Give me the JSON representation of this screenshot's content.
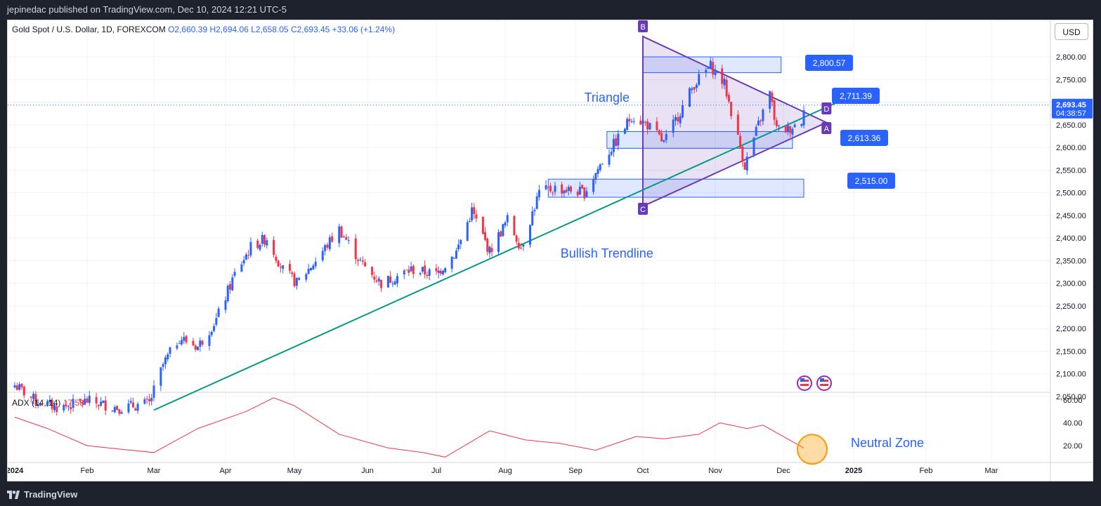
{
  "header": {
    "published": "jepinedac published on TradingView.com, Dec 10, 2024 12:21 UTC-5"
  },
  "footer": {
    "brand": "TradingView"
  },
  "legend": {
    "symbol": "Gold Spot / U.S. Dollar, 1D, FOREXCOM",
    "open": "O2,660.39",
    "high": "H2,694.06",
    "low": "L2,658.05",
    "close": "C2,693.45",
    "change": "+33.06 (+1.24%)"
  },
  "currency": "USD",
  "adx": {
    "label": "ADX (14, 14)",
    "value": "17.58"
  },
  "price_badge": {
    "price": "2,693.45",
    "countdown": "04:38:57"
  },
  "annotations": {
    "triangle": "Triangle",
    "bullish_trendline": "Bullish Trendline",
    "neutral_zone": "Neutral Zone",
    "labels": [
      "2,800.57",
      "2,711.39",
      "2,613.36",
      "2,515.00"
    ],
    "points": [
      "A",
      "B",
      "C",
      "D"
    ]
  },
  "colors": {
    "bull": "#2962ff",
    "bear": "#f23645",
    "trendline": "#089981",
    "triangle": "#673ab7",
    "zone": "#2962ff",
    "adx": "#f23645",
    "circle": "#ff9800"
  },
  "chart_data": {
    "type": "candlestick",
    "x_axis": [
      "2024",
      "Feb",
      "Mar",
      "Apr",
      "May",
      "Jun",
      "Jul",
      "Aug",
      "Sep",
      "Oct",
      "Nov",
      "Dec",
      "2025",
      "Feb",
      "Mar"
    ],
    "y_ticks": [
      "2,800.00",
      "2,750.00",
      "2,700.00",
      "2,650.00",
      "2,600.00",
      "2,550.00",
      "2,500.00",
      "2,450.00",
      "2,400.00",
      "2,350.00",
      "2,300.00",
      "2,250.00",
      "2,200.00",
      "2,150.00",
      "2,100.00",
      "2,050.00"
    ],
    "ylim": [
      2020,
      2860
    ],
    "close_path": [
      [
        "2024-01-01",
        2075
      ],
      [
        "2024-01-10",
        2040
      ],
      [
        "2024-01-20",
        2025
      ],
      [
        "2024-02-01",
        2040
      ],
      [
        "2024-02-15",
        2025
      ],
      [
        "2024-02-28",
        2035
      ],
      [
        "2024-03-05",
        2120
      ],
      [
        "2024-03-12",
        2180
      ],
      [
        "2024-03-20",
        2160
      ],
      [
        "2024-03-28",
        2220
      ],
      [
        "2024-04-05",
        2320
      ],
      [
        "2024-04-12",
        2380
      ],
      [
        "2024-04-19",
        2400
      ],
      [
        "2024-04-26",
        2330
      ],
      [
        "2024-05-02",
        2300
      ],
      [
        "2024-05-10",
        2350
      ],
      [
        "2024-05-20",
        2420
      ],
      [
        "2024-05-30",
        2340
      ],
      [
        "2024-06-07",
        2300
      ],
      [
        "2024-06-20",
        2330
      ],
      [
        "2024-07-01",
        2320
      ],
      [
        "2024-07-10",
        2370
      ],
      [
        "2024-07-17",
        2460
      ],
      [
        "2024-07-25",
        2370
      ],
      [
        "2024-08-02",
        2440
      ],
      [
        "2024-08-08",
        2380
      ],
      [
        "2024-08-16",
        2500
      ],
      [
        "2024-08-23",
        2510
      ],
      [
        "2024-09-05",
        2500
      ],
      [
        "2024-09-13",
        2570
      ],
      [
        "2024-09-20",
        2620
      ],
      [
        "2024-09-26",
        2670
      ],
      [
        "2024-10-03",
        2650
      ],
      [
        "2024-10-10",
        2610
      ],
      [
        "2024-10-18",
        2690
      ],
      [
        "2024-10-23",
        2740
      ],
      [
        "2024-10-30",
        2780
      ],
      [
        "2024-11-05",
        2740
      ],
      [
        "2024-11-08",
        2680
      ],
      [
        "2024-11-14",
        2560
      ],
      [
        "2024-11-20",
        2650
      ],
      [
        "2024-11-25",
        2720
      ],
      [
        "2024-11-28",
        2640
      ],
      [
        "2024-12-03",
        2640
      ],
      [
        "2024-12-09",
        2660
      ],
      [
        "2024-12-10",
        2693.45
      ]
    ],
    "adx_series": {
      "name": "ADX (14, 14)",
      "y_ticks": [
        "60.00",
        "40.00",
        "20.00"
      ],
      "ylim": [
        5,
        65
      ],
      "points": [
        [
          "2024-01-01",
          45
        ],
        [
          "2024-01-15",
          35
        ],
        [
          "2024-02-01",
          20
        ],
        [
          "2024-02-15",
          17
        ],
        [
          "2024-03-01",
          14
        ],
        [
          "2024-03-20",
          35
        ],
        [
          "2024-04-10",
          50
        ],
        [
          "2024-04-22",
          62
        ],
        [
          "2024-05-01",
          55
        ],
        [
          "2024-05-20",
          30
        ],
        [
          "2024-06-10",
          18
        ],
        [
          "2024-06-25",
          14
        ],
        [
          "2024-07-05",
          10
        ],
        [
          "2024-07-25",
          33
        ],
        [
          "2024-08-10",
          25
        ],
        [
          "2024-08-25",
          22
        ],
        [
          "2024-09-10",
          16
        ],
        [
          "2024-09-28",
          28
        ],
        [
          "2024-10-10",
          26
        ],
        [
          "2024-10-25",
          30
        ],
        [
          "2024-11-03",
          40
        ],
        [
          "2024-11-15",
          35
        ],
        [
          "2024-11-22",
          38
        ],
        [
          "2024-12-10",
          18
        ]
      ]
    },
    "trendline": [
      [
        "2024-03-01",
        2020
      ],
      [
        "2024-12-25",
        2700
      ]
    ],
    "triangle": [
      [
        "2024-10-01",
        2845
      ],
      [
        "2024-10-01",
        2470
      ],
      [
        "2024-12-20",
        2655
      ]
    ],
    "zones": [
      {
        "from": "2024-10-01",
        "to": "2024-11-30",
        "low": 2765,
        "high": 2800,
        "label": "2,800.57"
      },
      {
        "from": "2024-09-15",
        "to": "2024-12-05",
        "low": 2598,
        "high": 2635,
        "label": "2,613.36"
      },
      {
        "from": "2024-08-20",
        "to": "2024-12-10",
        "low": 2490,
        "high": 2530,
        "label": "2,515.00"
      }
    ]
  }
}
